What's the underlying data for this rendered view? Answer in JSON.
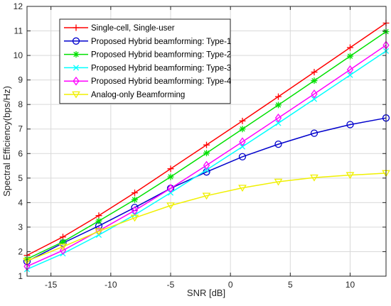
{
  "chart_data": {
    "type": "line",
    "xlabel": "SNR [dB]",
    "ylabel": "Spectral Efficiency(bps/Hz)",
    "xlim": [
      -17,
      13
    ],
    "ylim": [
      1,
      12
    ],
    "xticks": [
      -15,
      -10,
      -5,
      0,
      5,
      10
    ],
    "yticks": [
      1,
      2,
      3,
      4,
      5,
      6,
      7,
      8,
      9,
      10,
      11,
      12
    ],
    "grid": true,
    "legend_position": "top-left",
    "x": [
      -17,
      -14,
      -11,
      -8,
      -5,
      -2,
      1,
      4,
      7,
      10,
      13
    ],
    "series": [
      {
        "name": "Single-cell, Single-user",
        "color": "#ff0000",
        "marker": "plus",
        "values": [
          1.85,
          2.6,
          3.47,
          4.4,
          5.38,
          6.35,
          7.33,
          8.32,
          9.32,
          10.32,
          11.32
        ]
      },
      {
        "name": "Proposed Hybrid beamforming: Type-1",
        "color": "#0000cc",
        "marker": "circle",
        "values": [
          1.6,
          2.35,
          3.05,
          3.8,
          4.58,
          5.25,
          5.87,
          6.38,
          6.83,
          7.18,
          7.45
        ]
      },
      {
        "name": "Proposed Hybrid beamforming: Type-2",
        "color": "#00e000",
        "marker": "star",
        "values": [
          1.7,
          2.4,
          3.25,
          4.12,
          5.05,
          6.02,
          7.0,
          7.98,
          8.97,
          9.97,
          10.97
        ]
      },
      {
        "name": "Proposed Hybrid beamforming: Type-3",
        "color": "#00ffff",
        "marker": "x",
        "values": [
          1.28,
          1.92,
          2.68,
          3.5,
          4.4,
          5.33,
          6.28,
          7.24,
          8.22,
          9.2,
          10.18
        ]
      },
      {
        "name": "Proposed Hybrid beamforming: Type-4",
        "color": "#ff00ff",
        "marker": "diamond",
        "values": [
          1.4,
          2.05,
          2.85,
          3.68,
          4.58,
          5.52,
          6.48,
          7.45,
          8.43,
          9.42,
          10.42
        ]
      },
      {
        "name": "Analog-only Beamforming",
        "color": "#f0f000",
        "marker": "triangle-down",
        "values": [
          1.62,
          2.2,
          2.83,
          3.38,
          3.88,
          4.28,
          4.6,
          4.85,
          5.02,
          5.12,
          5.2
        ]
      }
    ]
  }
}
